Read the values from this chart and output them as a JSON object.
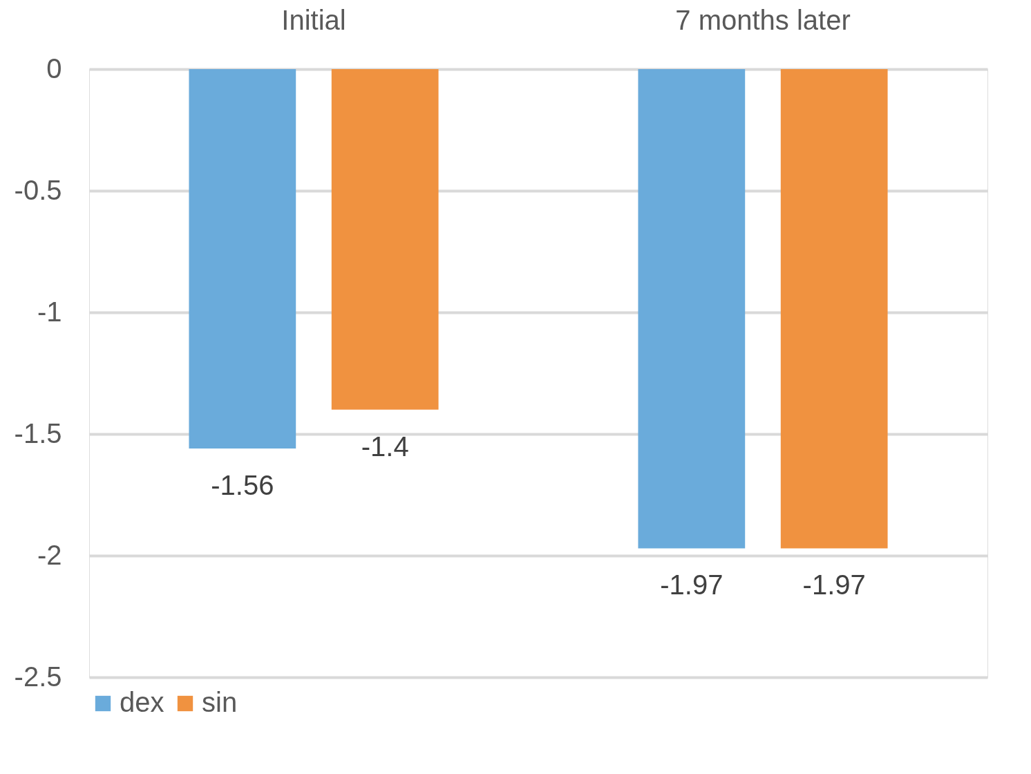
{
  "chart_data": {
    "type": "bar",
    "categories": [
      "Initial",
      "7 months later"
    ],
    "series": [
      {
        "name": "dex",
        "color": "#6aabdb",
        "values": [
          -1.56,
          -1.97
        ]
      },
      {
        "name": "sin",
        "color": "#f09240",
        "values": [
          -1.4,
          -1.97
        ]
      }
    ],
    "ylim": [
      -2.5,
      0
    ],
    "yticks": [
      0,
      -0.5,
      -1,
      -1.5,
      -2,
      -2.5
    ],
    "grid": "y",
    "legend": "bottom",
    "data_labels": true
  }
}
